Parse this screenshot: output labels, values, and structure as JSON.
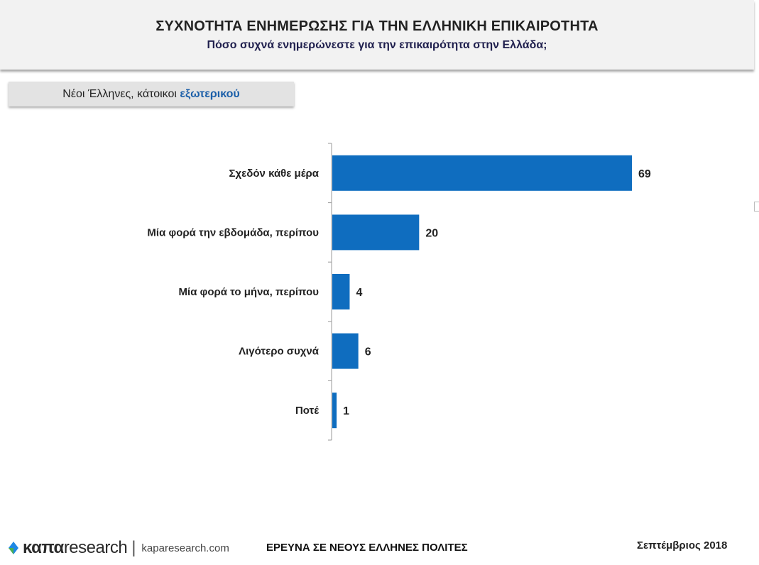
{
  "header": {
    "title": "ΣΥΧΝΟΤΗΤΑ ΕΝΗΜΕΡΩΣΗΣ ΓΙΑ ΤΗΝ ΕΛΛΗΝΙΚΗ ΕΠΙΚΑΙΡΟΤΗΤΑ",
    "subtitle": "Πόσο συχνά ενημερώνεστε για την επικαιρότητα στην Ελλάδα;"
  },
  "segment": {
    "label_plain": "Νέοι Έλληνες, κάτοικοι ",
    "label_highlight": "εξωτερικού"
  },
  "chart_data": {
    "type": "bar",
    "orientation": "horizontal",
    "categories": [
      "Σχεδόν κάθε μέρα",
      "Μία φορά την εβδομάδα, περίπου",
      "Μία φορά το μήνα, περίπου",
      "Λιγότερο συχνά",
      "Ποτέ"
    ],
    "values": [
      69,
      20,
      4,
      6,
      1
    ],
    "xlim": [
      0,
      69
    ],
    "bar_color": "#0f6dbf",
    "grid": false,
    "legend": "none"
  },
  "footer": {
    "survey": "ΕΡΕΥΝΑ ΣΕ ΝΕΟΥΣ ΕΛΛΗΝΕΣ ΠΟΛΙΤΕΣ",
    "date": "Σεπτέμβριος 2018",
    "logo_brand_bold": "καπα",
    "logo_brand_light": "research",
    "logo_separator": "|",
    "logo_url": "kaparesearch.com"
  },
  "colors": {
    "accent": "#1a5ea8",
    "bar": "#0f6dbf",
    "logo_green": "#4caf50",
    "logo_blue": "#1e88e5"
  }
}
